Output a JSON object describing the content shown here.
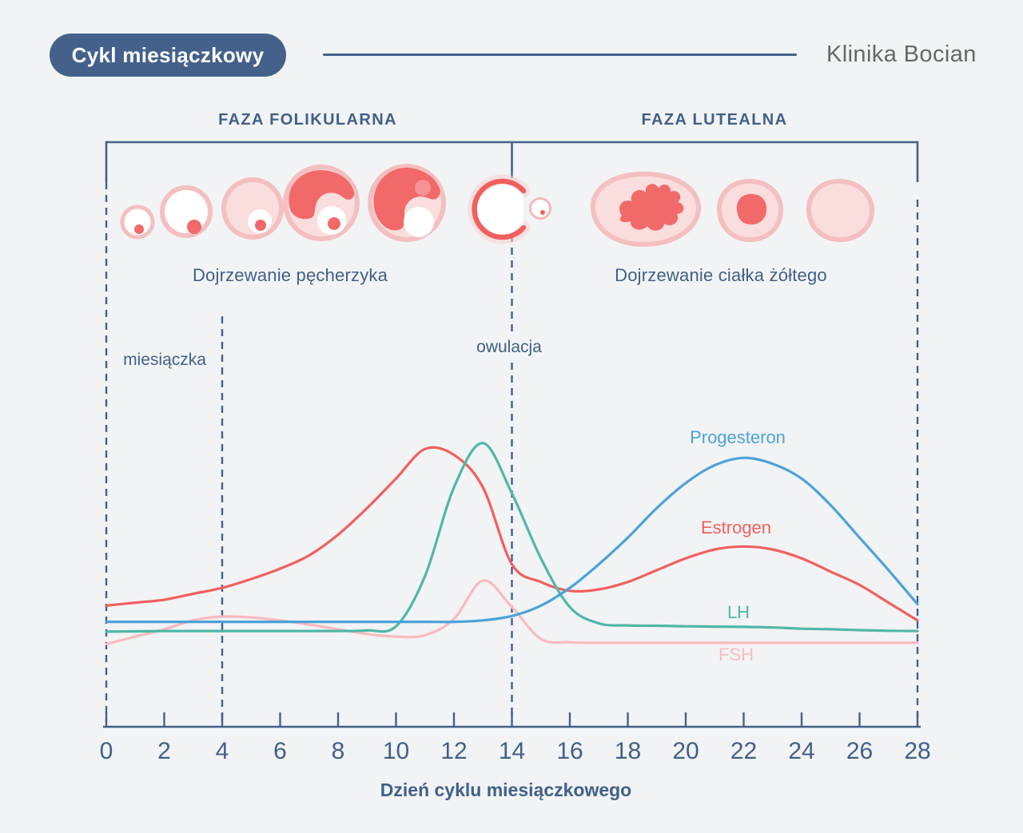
{
  "header": {
    "badge": "Cykl miesiączkowy",
    "brand": "Klinika Bocian"
  },
  "phases": {
    "follicular": {
      "label": "FAZA FOLIKULARNA",
      "day_start": 0,
      "day_end": 14
    },
    "luteal": {
      "label": "FAZA LUTEALNA",
      "day_start": 14,
      "day_end": 28
    }
  },
  "illustrations": {
    "follicle_caption": "Dojrzewanie pęcherzyka",
    "corpus_luteum_caption": "Dojrzewanie ciałka żółtego",
    "stage_icons": [
      "follicle-small-icon",
      "follicle-growing-icon",
      "follicle-secondary-icon",
      "follicle-graafian-icon",
      "follicle-mature-icon",
      "ovulation-release-icon",
      "corpus-luteum-forming-icon",
      "corpus-luteum-icon",
      "corpus-albicans-icon"
    ]
  },
  "events": {
    "menstruation": {
      "label": "miesiączka",
      "day_start": 0,
      "day_end": 4
    },
    "ovulation": {
      "label": "owulacja",
      "day": 14
    },
    "cycle_end_day": 28
  },
  "colors": {
    "background": "#f2f3f4",
    "navy": "#44618c",
    "text_navy": "#41608a",
    "brand_gray": "#65676b",
    "estrogen_red": "#f25f5f",
    "progesterone_blue": "#4ba3d8",
    "lh_teal": "#4fb8a6",
    "fsh_pink": "#f9bac1",
    "illustration_ring": "#f4bfc0",
    "illustration_fill": "#fadddd",
    "illustration_red": "#f2696a"
  },
  "chart_data": {
    "type": "line",
    "title": "Cykl miesiączkowy",
    "xlabel": "Dzień cyklu miesiączkowego",
    "ylabel": "",
    "y_axis_shown": false,
    "y_units": "relative hormone level (0–100, unitless)",
    "x_range": [
      0,
      28
    ],
    "ylim": [
      0,
      110
    ],
    "grid": false,
    "legend_position": "labels next to curves",
    "x_ticks": [
      0,
      2,
      4,
      6,
      8,
      10,
      12,
      14,
      16,
      18,
      20,
      22,
      24,
      26,
      28
    ],
    "x": [
      0,
      1,
      2,
      3,
      4,
      5,
      6,
      7,
      8,
      9,
      10,
      11,
      12,
      13,
      14,
      15,
      16,
      17,
      18,
      19,
      20,
      21,
      22,
      23,
      24,
      25,
      26,
      27,
      28
    ],
    "series": [
      {
        "name": "Estrogen",
        "color": "#f25f5f",
        "values": [
          41,
          42,
          43,
          45,
          47,
          50,
          53.5,
          58,
          65,
          74,
          84,
          94,
          92,
          81,
          55,
          49,
          46,
          46.5,
          49,
          53,
          57,
          60,
          61,
          60,
          57,
          52.5,
          48,
          42,
          36
        ],
        "peaks": [
          {
            "day": 11.5,
            "note": "pre-ovulatory peak"
          },
          {
            "day": 22,
            "note": "luteal peak"
          }
        ]
      },
      {
        "name": "Progesteron",
        "color": "#4ba3d8",
        "values": [
          35.5,
          35.5,
          35.5,
          35.5,
          35.5,
          35.5,
          35.5,
          35.5,
          35.5,
          35.5,
          35.5,
          35.5,
          35.5,
          36,
          37.5,
          41,
          47,
          55,
          64,
          74,
          82.5,
          88.5,
          91,
          89,
          84,
          75,
          64,
          53,
          41.5
        ],
        "peaks": [
          {
            "day": 22,
            "note": "luteal peak"
          }
        ]
      },
      {
        "name": "LH",
        "color": "#4fb8a6",
        "values": [
          32.2,
          32.3,
          32.4,
          32.4,
          32.4,
          32.4,
          32.4,
          32.4,
          32.4,
          32.6,
          34,
          51,
          81,
          96,
          79,
          57,
          40.5,
          35,
          34.3,
          34.2,
          34,
          33.9,
          33.8,
          33.6,
          33.2,
          33,
          32.7,
          32.5,
          32.4
        ],
        "peaks": [
          {
            "day": 13.3,
            "note": "LH surge at ovulation"
          }
        ]
      },
      {
        "name": "FSH",
        "color": "#f9bac1",
        "values": [
          28,
          30.5,
          33,
          36,
          37.3,
          37,
          36,
          34.6,
          33,
          31.4,
          30.5,
          31,
          36.5,
          49.5,
          40.5,
          29.7,
          28.6,
          28.4,
          28.4,
          28.4,
          28.4,
          28.4,
          28.4,
          28.4,
          28.4,
          28.4,
          28.4,
          28.4,
          28.4
        ],
        "peaks": [
          {
            "day": 4.2,
            "note": "early follicular bump"
          },
          {
            "day": 13.3,
            "note": "mid-cycle surge"
          }
        ]
      }
    ]
  }
}
